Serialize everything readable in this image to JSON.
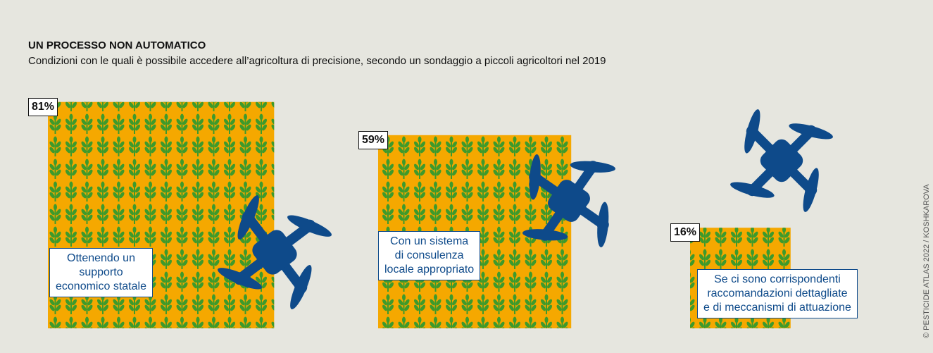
{
  "chart_data": {
    "type": "square",
    "title": "UN PROCESSO NON AUTOMATICO",
    "subtitle": "Condizioni con le quali è possibile accedere all’agricoltura di precisione, secondo un sondaggio a piccoli agricoltori nel 2019",
    "categories": [
      "Ottenendo un\nsupporto\neconomico statale",
      "Con un sistema\ndi consulenza\nlocale appropriato",
      "Se ci sono corrispondenti\nraccomandazioni dettagliate\ne di meccanismi di attuazione"
    ],
    "values": [
      81,
      59,
      16
    ],
    "value_labels": [
      "81%",
      "59%",
      "16%"
    ],
    "color": "#f5a800",
    "credit": "© PESTICIDE ATLAS 2022 / KOSHKAROVA"
  }
}
